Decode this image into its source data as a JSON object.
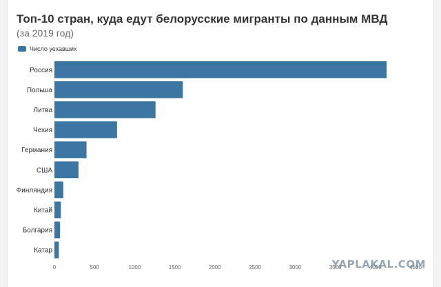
{
  "chart_data": {
    "type": "bar",
    "orientation": "horizontal",
    "title": "Топ-10 стран, куда едут белорусские мигранты по данным МВД",
    "subtitle": "(за 2019 год)",
    "categories": [
      "Россия",
      "Польша",
      "Литва",
      "Чехия",
      "Германия",
      "США",
      "Финляндия",
      "Китай",
      "Болгария",
      "Катар"
    ],
    "series": [
      {
        "name": "Число уехавших",
        "color": "#3a76a1",
        "values": [
          4140,
          1600,
          1260,
          780,
          400,
          300,
          110,
          80,
          70,
          55
        ]
      }
    ],
    "xlim": [
      0,
      4500
    ],
    "xticks": [
      "0",
      "500",
      "1000",
      "1500",
      "2000",
      "2500",
      "3000",
      "3500",
      "4000",
      "4500"
    ],
    "grid": false,
    "legend_position": "top-left"
  },
  "watermark": "YAPLAKAL.COM"
}
